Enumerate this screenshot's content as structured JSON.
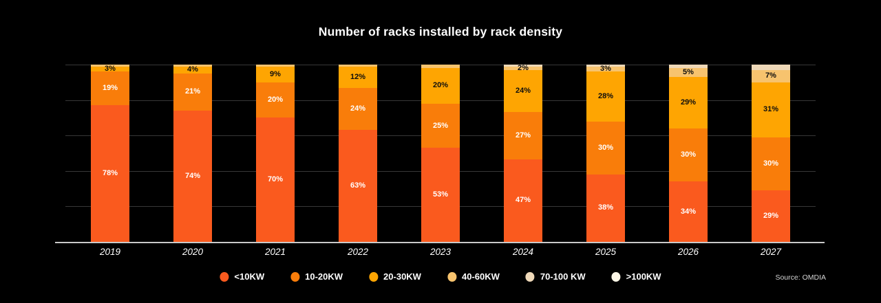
{
  "title": "Number of racks installed by rack density",
  "source": "Source: OMDIA",
  "colors": {
    "background": "#000000",
    "gridline": "#383838",
    "baseline": "#c9c9c9",
    "title_text": "#ffffff",
    "axis_text": "#ffffff"
  },
  "chart_data": {
    "type": "bar",
    "stacked": true,
    "title": "Number of racks installed by rack density",
    "xlabel": "",
    "ylabel": "",
    "unit": "%",
    "ylim": [
      0,
      100
    ],
    "gridlines_pct": [
      20,
      40,
      60,
      80,
      100
    ],
    "grid": "on",
    "legend_position": "bottom",
    "categories": [
      "2019",
      "2020",
      "2021",
      "2022",
      "2023",
      "2024",
      "2025",
      "2026",
      "2027"
    ],
    "series": [
      {
        "name": "<10KW",
        "color": "#fa5a1e",
        "text": "#ffffff",
        "values": [
          78,
          74,
          70,
          63,
          53,
          47,
          38,
          34,
          29
        ]
      },
      {
        "name": "10-20KW",
        "color": "#f97d0a",
        "text": "#ffffff",
        "values": [
          19,
          21,
          20,
          24,
          25,
          27,
          30,
          30,
          30
        ]
      },
      {
        "name": "20-30KW",
        "color": "#fea502",
        "text": "#0d0d0d",
        "values": [
          3,
          4,
          9,
          12,
          20,
          24,
          28,
          29,
          31
        ]
      },
      {
        "name": "40-60KW",
        "color": "#f7c36e",
        "text": "#0d0d0d",
        "values": [
          1,
          1,
          1,
          1,
          2,
          2,
          3,
          5,
          7
        ]
      },
      {
        "name": "70-100 KW",
        "color": "#eed8b8",
        "text": "#0d0d0d",
        "values": [
          0,
          0,
          0,
          0,
          0,
          1,
          1,
          2,
          3
        ]
      },
      {
        "name": ">100KW",
        "color": "#fdf7e7",
        "text": "#0d0d0d",
        "values": [
          0,
          0,
          0,
          0,
          0,
          0,
          0,
          0,
          0
        ]
      }
    ],
    "segment_labels": [
      [
        "78%",
        "19%",
        "3%",
        "",
        "",
        ""
      ],
      [
        "74%",
        "21%",
        "4%",
        "",
        "",
        ""
      ],
      [
        "70%",
        "20%",
        "9%",
        "",
        "",
        ""
      ],
      [
        "63%",
        "24%",
        "12%",
        "",
        "",
        ""
      ],
      [
        "53%",
        "25%",
        "20%",
        "",
        "",
        ""
      ],
      [
        "47%",
        "27%",
        "24%",
        "2%",
        "",
        ""
      ],
      [
        "38%",
        "30%",
        "28%",
        "3%",
        "",
        ""
      ],
      [
        "34%",
        "30%",
        "29%",
        "5%",
        "",
        ""
      ],
      [
        "29%",
        "30%",
        "31%",
        "7%",
        "",
        ""
      ]
    ]
  },
  "legend": {
    "items": [
      {
        "label": "<10KW",
        "color": "#fa5a1e"
      },
      {
        "label": "10-20KW",
        "color": "#f97d0a"
      },
      {
        "label": "20-30KW",
        "color": "#fea502"
      },
      {
        "label": "40-60KW",
        "color": "#f7c36e"
      },
      {
        "label": "70-100 KW",
        "color": "#eed8b8"
      },
      {
        "label": ">100KW",
        "color": "#fdf7e7"
      }
    ]
  }
}
